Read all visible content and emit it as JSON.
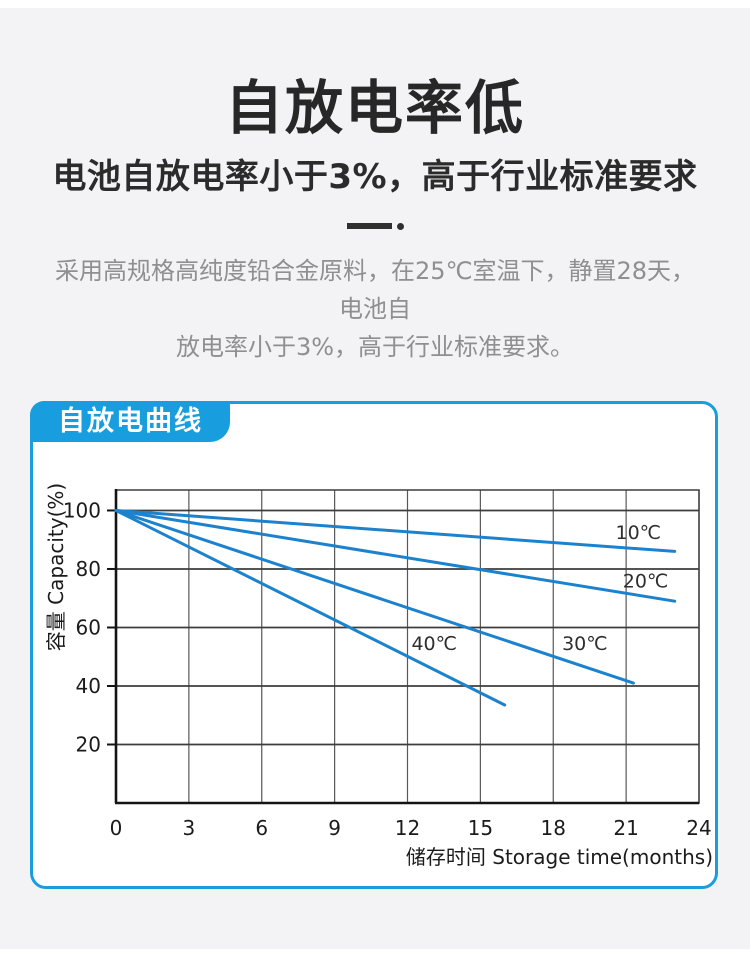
{
  "page": {
    "background": "#f3f3f5",
    "header": {
      "title": "自放电率低",
      "subtitle": "电池自放电率小于3%，高于行业标准要求",
      "description_line1": "采用高规格高纯度铅合金原料，在25℃室温下，静置28天，电池自",
      "description_line2": "放电率小于3%，高于行业标准要求。"
    },
    "panel": {
      "tab_label": "自放电曲线",
      "accent_color": "#189ede"
    }
  },
  "chart_data": {
    "type": "line",
    "title": "自放电曲线",
    "xlabel": "储存时间 Storage time(months)",
    "ylabel": "容量 Capacity(%)",
    "xlim": [
      0,
      24
    ],
    "ylim": [
      0,
      107
    ],
    "x_ticks": [
      0,
      3,
      6,
      9,
      12,
      15,
      18,
      21,
      24
    ],
    "y_ticks": [
      20,
      40,
      60,
      80,
      100
    ],
    "grid": true,
    "legend_position": "inline-labels",
    "line_color": "#1c82cd",
    "series": [
      {
        "name": "10℃",
        "points": [
          [
            0,
            100
          ],
          [
            23,
            86
          ]
        ],
        "label_at": [
          21.5,
          92.5
        ]
      },
      {
        "name": "20℃",
        "points": [
          [
            0,
            100
          ],
          [
            23,
            69
          ]
        ],
        "label_at": [
          21.8,
          76
        ]
      },
      {
        "name": "30℃",
        "points": [
          [
            0,
            100
          ],
          [
            21.3,
            41
          ]
        ],
        "label_at": [
          19.3,
          54.5
        ]
      },
      {
        "name": "40℃",
        "points": [
          [
            0,
            100
          ],
          [
            16,
            33.5
          ]
        ],
        "label_at": [
          13.1,
          54.5
        ]
      }
    ]
  }
}
